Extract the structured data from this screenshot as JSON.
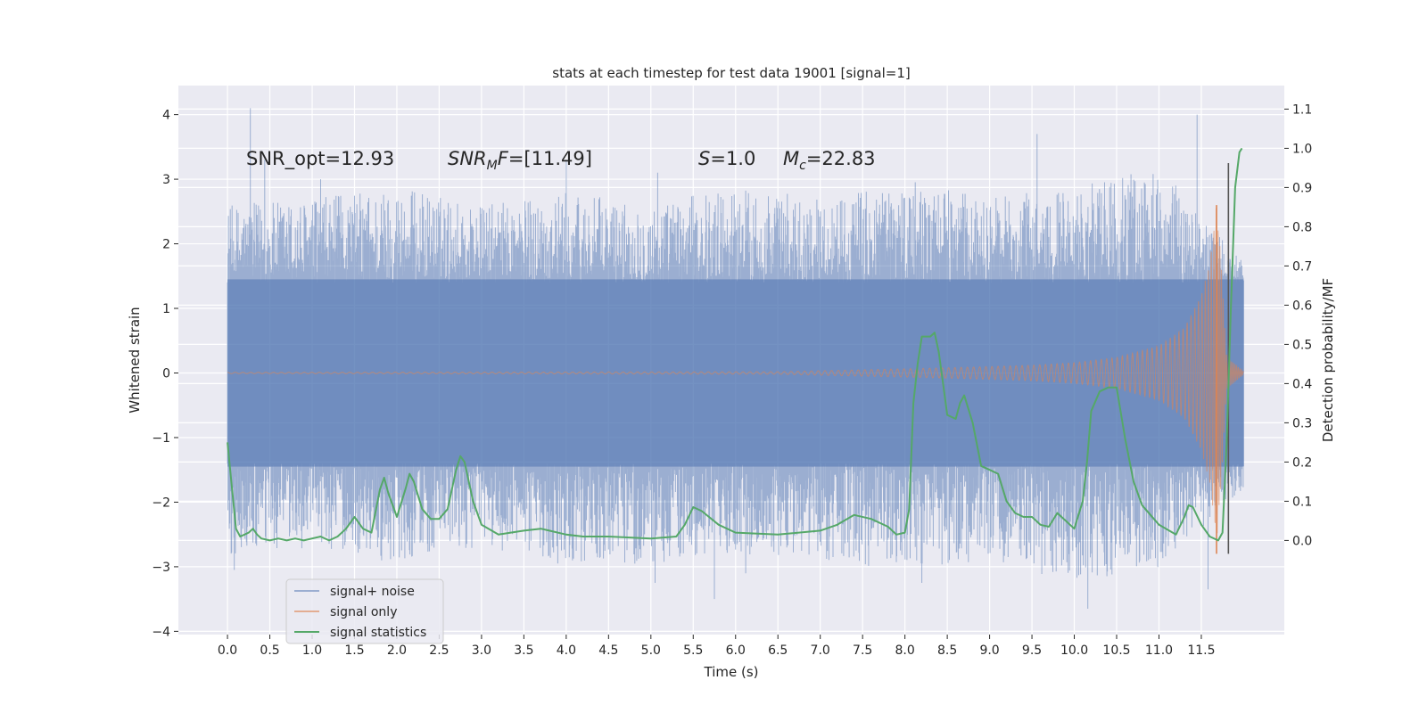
{
  "chart_data": {
    "type": "line",
    "title": "stats at each timestep for test data 19001 [signal=1]",
    "xlabel": "Time (s)",
    "ylabel": "Whitened strain",
    "ylabel_right": "Detection probability/MF",
    "xlim": [
      -0.58,
      12.48
    ],
    "ylim": [
      -4.05,
      4.45
    ],
    "ylim_right": [
      -0.24,
      1.16
    ],
    "x_ticks": [
      0.0,
      0.5,
      1.0,
      1.5,
      2.0,
      2.5,
      3.0,
      3.5,
      4.0,
      4.5,
      5.0,
      5.5,
      6.0,
      6.5,
      7.0,
      7.5,
      8.0,
      8.5,
      9.0,
      9.5,
      10.0,
      10.5,
      11.0,
      11.5
    ],
    "x_tick_labels": [
      "0.0",
      "0.5",
      "1.0",
      "1.5",
      "2.0",
      "2.5",
      "3.0",
      "3.5",
      "4.0",
      "4.5",
      "5.0",
      "5.5",
      "6.0",
      "6.5",
      "7.0",
      "7.5",
      "8.0",
      "8.5",
      "9.0",
      "9.5",
      "10.0",
      "10.5",
      "11.0",
      "11.5"
    ],
    "y_ticks": [
      -4,
      -3,
      -2,
      -1,
      0,
      1,
      2,
      3,
      4
    ],
    "y_tick_labels": [
      "−4",
      "−3",
      "−2",
      "−1",
      "0",
      "1",
      "2",
      "3",
      "4"
    ],
    "y_ticks_right": [
      0.0,
      0.1,
      0.2,
      0.3,
      0.4,
      0.5,
      0.6,
      0.7,
      0.8,
      0.9,
      1.0,
      1.1
    ],
    "y_tick_labels_right": [
      "0.0",
      "0.1",
      "0.2",
      "0.3",
      "0.4",
      "0.5",
      "0.6",
      "0.7",
      "0.8",
      "0.9",
      "1.0",
      "1.1"
    ],
    "grid": true,
    "legend_position": "lower-left",
    "annotations": [
      {
        "text": "SNR_opt=12.93",
        "x": 0.2,
        "y": 3.32
      },
      {
        "text": "SNR_MF=[11.49]",
        "x": 2.6,
        "y": 3.32
      },
      {
        "text": "S=1.0",
        "x": 5.6,
        "y": 3.32
      },
      {
        "text": "M_c=22.83",
        "x": 6.6,
        "y": 3.32
      }
    ],
    "vertical_markers": [
      {
        "x": 11.68,
        "y_range": [
          -2.8,
          2.6
        ],
        "color": "#dd8452"
      },
      {
        "x": 11.82,
        "y_range": [
          -2.8,
          3.25
        ],
        "color": "#555555"
      }
    ],
    "series": [
      {
        "name": "signal+ noise",
        "color": "#4c72b0",
        "axis": "left",
        "description": "whitened strain, dense noise, x from 0.0 to 12.0",
        "noise_envelope_x": [
          0,
          1,
          2,
          3,
          4,
          5,
          6,
          7,
          8,
          9,
          10,
          11,
          12
        ],
        "noise_envelope_upper": [
          2.6,
          2.7,
          2.9,
          2.6,
          2.8,
          2.6,
          2.9,
          2.7,
          3.0,
          2.7,
          2.9,
          3.2,
          1.7
        ],
        "noise_envelope_lower": [
          -2.9,
          -2.7,
          -2.9,
          -2.7,
          -2.9,
          -3.0,
          -2.8,
          -2.9,
          -3.1,
          -2.9,
          -3.3,
          -3.0,
          -1.8
        ],
        "spikes": [
          {
            "x": 0.27,
            "y": 4.1
          },
          {
            "x": 0.44,
            "y": 3.3
          },
          {
            "x": 1.1,
            "y": 3.0
          },
          {
            "x": 4.0,
            "y": 3.3
          },
          {
            "x": 5.08,
            "y": 3.1
          },
          {
            "x": 9.56,
            "y": 3.7
          },
          {
            "x": 11.45,
            "y": 4.0
          },
          {
            "x": 10.16,
            "y": -3.65
          },
          {
            "x": 11.58,
            "y": -3.35
          },
          {
            "x": 5.05,
            "y": -3.25
          },
          {
            "x": 5.75,
            "y": -3.5
          },
          {
            "x": 8.2,
            "y": -3.25
          },
          {
            "x": 0.08,
            "y": -3.05
          },
          {
            "x": 1.82,
            "y": -2.9
          },
          {
            "x": 3.9,
            "y": -2.95
          },
          {
            "x": 6.12,
            "y": -3.1
          }
        ]
      },
      {
        "name": "signal only",
        "color": "#dd8452",
        "axis": "left",
        "description": "chirp signal: amplitude near zero until about 7 s, growing to about ±2.6 at merger near 11.68 s, then ringdown",
        "amplitude_envelope_x": [
          0,
          6.5,
          7.5,
          8.5,
          9.5,
          10.0,
          10.5,
          11.0,
          11.3,
          11.5,
          11.6,
          11.68,
          11.72,
          11.8,
          12.0
        ],
        "amplitude_envelope": [
          0.01,
          0.02,
          0.05,
          0.08,
          0.12,
          0.16,
          0.24,
          0.42,
          0.7,
          1.2,
          1.7,
          2.6,
          2.0,
          0.25,
          0.02
        ]
      },
      {
        "name": "signal statistics",
        "color": "#55a868",
        "axis": "right",
        "x": [
          0.0,
          0.05,
          0.1,
          0.15,
          0.2,
          0.25,
          0.3,
          0.35,
          0.4,
          0.5,
          0.6,
          0.7,
          0.8,
          0.9,
          1.0,
          1.1,
          1.2,
          1.3,
          1.4,
          1.5,
          1.6,
          1.7,
          1.8,
          1.85,
          1.9,
          2.0,
          2.1,
          2.15,
          2.2,
          2.3,
          2.4,
          2.5,
          2.6,
          2.7,
          2.75,
          2.8,
          2.9,
          3.0,
          3.2,
          3.5,
          3.7,
          3.8,
          4.0,
          4.2,
          4.5,
          5.0,
          5.3,
          5.4,
          5.5,
          5.6,
          5.8,
          6.0,
          6.5,
          7.0,
          7.2,
          7.4,
          7.6,
          7.8,
          7.9,
          8.0,
          8.05,
          8.1,
          8.15,
          8.2,
          8.3,
          8.35,
          8.4,
          8.45,
          8.5,
          8.6,
          8.65,
          8.7,
          8.8,
          8.9,
          9.0,
          9.1,
          9.2,
          9.3,
          9.4,
          9.5,
          9.6,
          9.7,
          9.8,
          9.9,
          10.0,
          10.1,
          10.15,
          10.2,
          10.3,
          10.4,
          10.5,
          10.6,
          10.7,
          10.8,
          11.0,
          11.2,
          11.3,
          11.35,
          11.4,
          11.5,
          11.6,
          11.7,
          11.75,
          11.8,
          11.85,
          11.9,
          11.95,
          11.98
        ],
        "values": [
          0.25,
          0.14,
          0.03,
          0.01,
          0.015,
          0.02,
          0.03,
          0.015,
          0.005,
          0.0,
          0.005,
          0.0,
          0.005,
          0.0,
          0.005,
          0.01,
          0.0,
          0.01,
          0.03,
          0.06,
          0.03,
          0.02,
          0.13,
          0.16,
          0.12,
          0.06,
          0.13,
          0.17,
          0.15,
          0.08,
          0.055,
          0.055,
          0.08,
          0.18,
          0.215,
          0.2,
          0.1,
          0.04,
          0.015,
          0.025,
          0.03,
          0.025,
          0.015,
          0.01,
          0.01,
          0.005,
          0.01,
          0.04,
          0.085,
          0.075,
          0.04,
          0.02,
          0.015,
          0.025,
          0.04,
          0.065,
          0.055,
          0.035,
          0.015,
          0.02,
          0.08,
          0.35,
          0.45,
          0.52,
          0.52,
          0.53,
          0.48,
          0.4,
          0.32,
          0.31,
          0.35,
          0.37,
          0.3,
          0.19,
          0.18,
          0.17,
          0.1,
          0.07,
          0.06,
          0.06,
          0.04,
          0.035,
          0.07,
          0.05,
          0.03,
          0.1,
          0.2,
          0.33,
          0.38,
          0.39,
          0.39,
          0.26,
          0.15,
          0.09,
          0.04,
          0.015,
          0.06,
          0.09,
          0.085,
          0.04,
          0.01,
          0.0,
          0.02,
          0.25,
          0.6,
          0.9,
          0.99,
          1.0
        ]
      }
    ]
  }
}
